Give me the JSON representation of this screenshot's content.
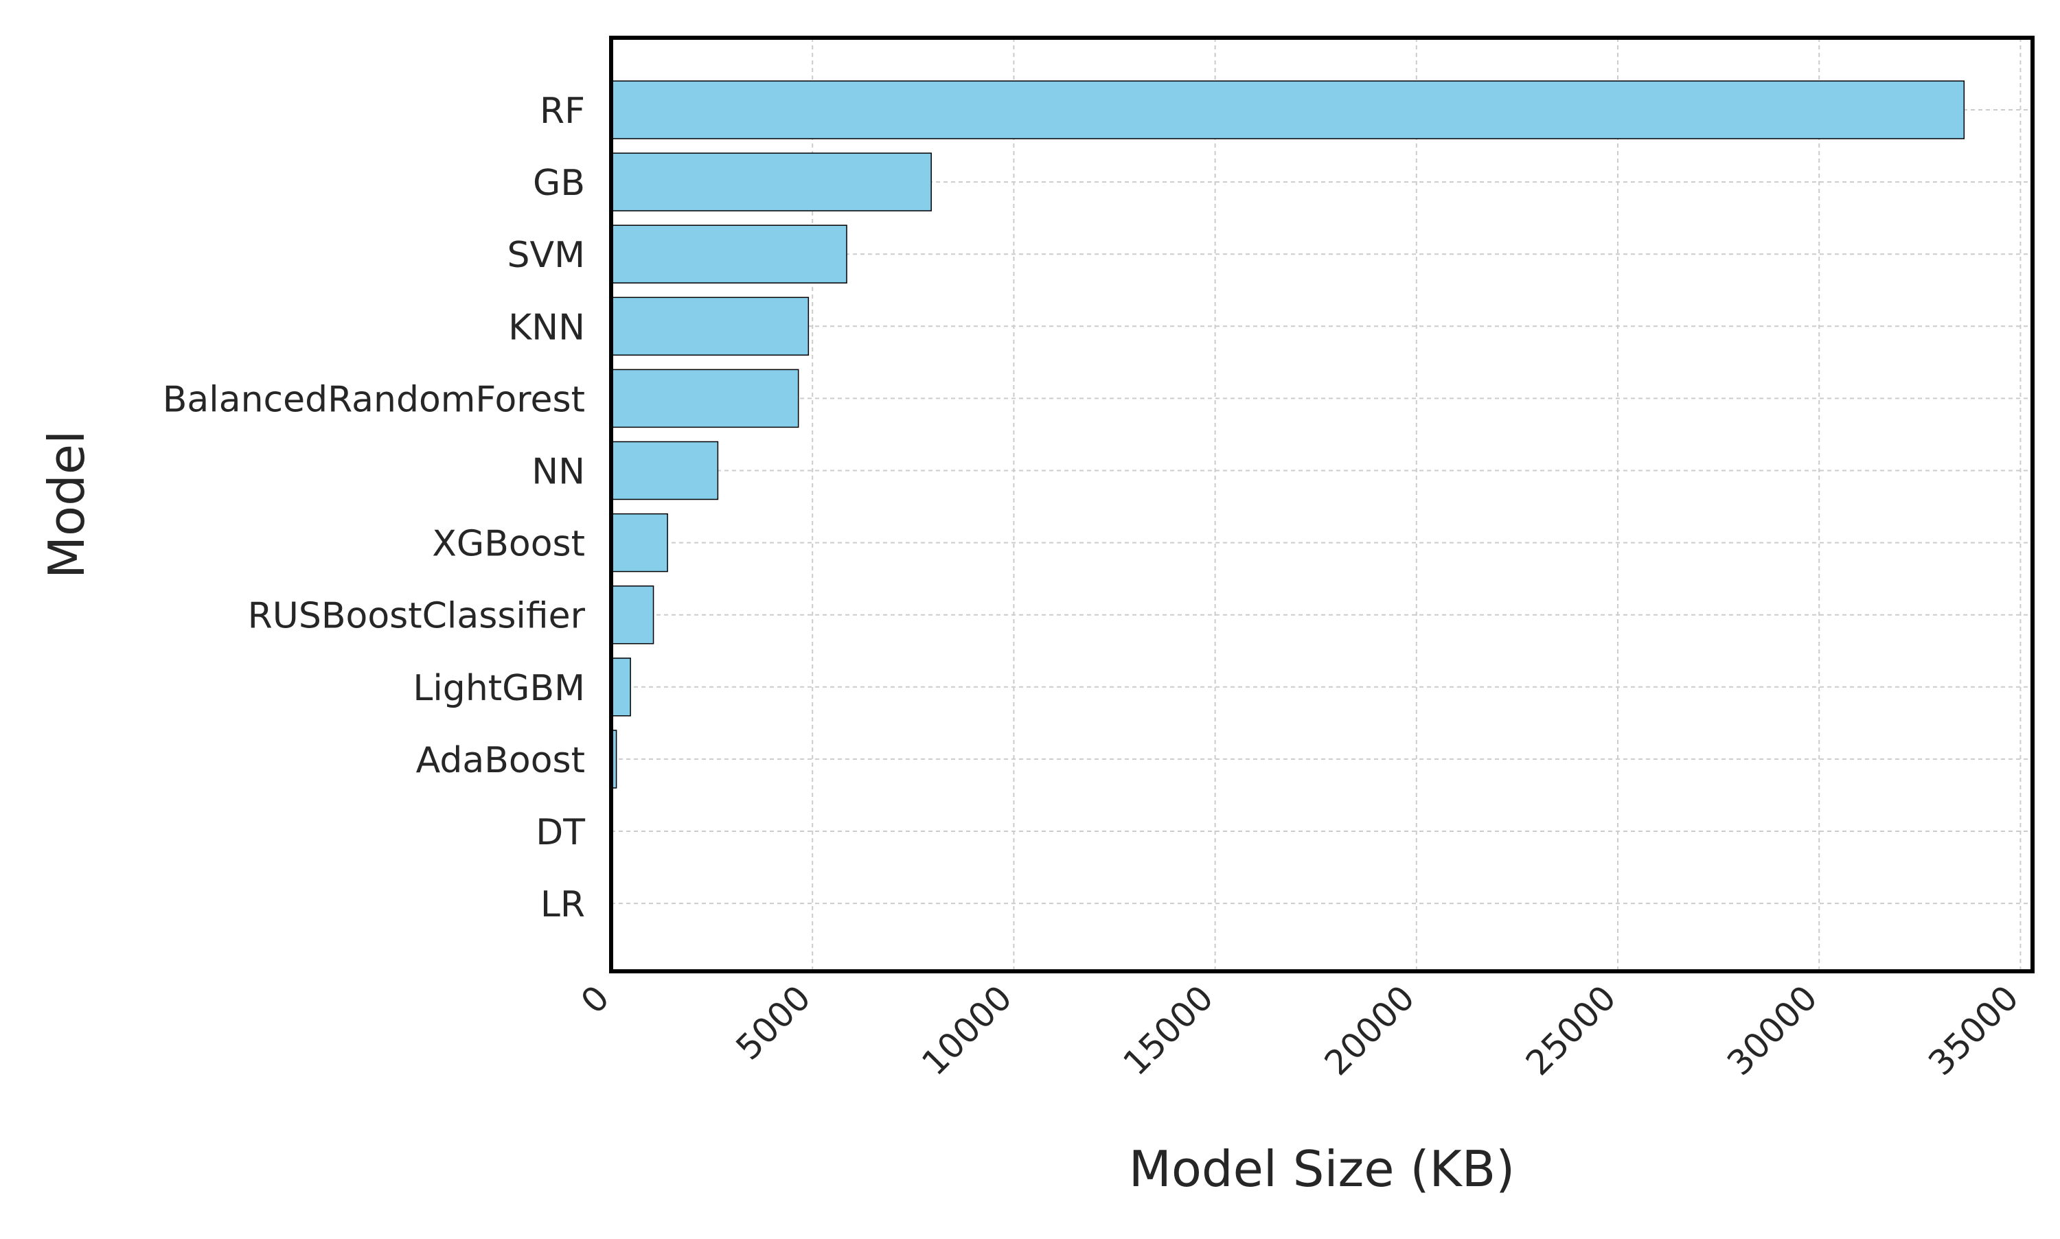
{
  "chart_data": {
    "type": "bar",
    "orientation": "horizontal",
    "title": "",
    "xlabel": "Model Size (KB)",
    "ylabel": "Model",
    "xlim": [
      0,
      35300
    ],
    "xticks": [
      0,
      5000,
      10000,
      15000,
      20000,
      25000,
      30000,
      35000
    ],
    "xtick_labels": [
      "0",
      "5000",
      "10000",
      "15000",
      "20000",
      "25000",
      "30000",
      "35000"
    ],
    "categories": [
      "RF",
      "GB",
      "SVM",
      "KNN",
      "BalancedRandomForest",
      "NN",
      "XGBoost",
      "RUSBoostClassifier",
      "LightGBM",
      "AdaBoost",
      "DT",
      "LR"
    ],
    "values": [
      33600,
      7950,
      5850,
      4900,
      4650,
      2650,
      1400,
      1050,
      480,
      130,
      8,
      4
    ],
    "grid": true,
    "legend": "none",
    "colors": {
      "bar_fill": "#87ceeb",
      "bar_edge": "#000000",
      "grid": "#cccccc",
      "frame": "#000000",
      "text": "#262626"
    }
  }
}
